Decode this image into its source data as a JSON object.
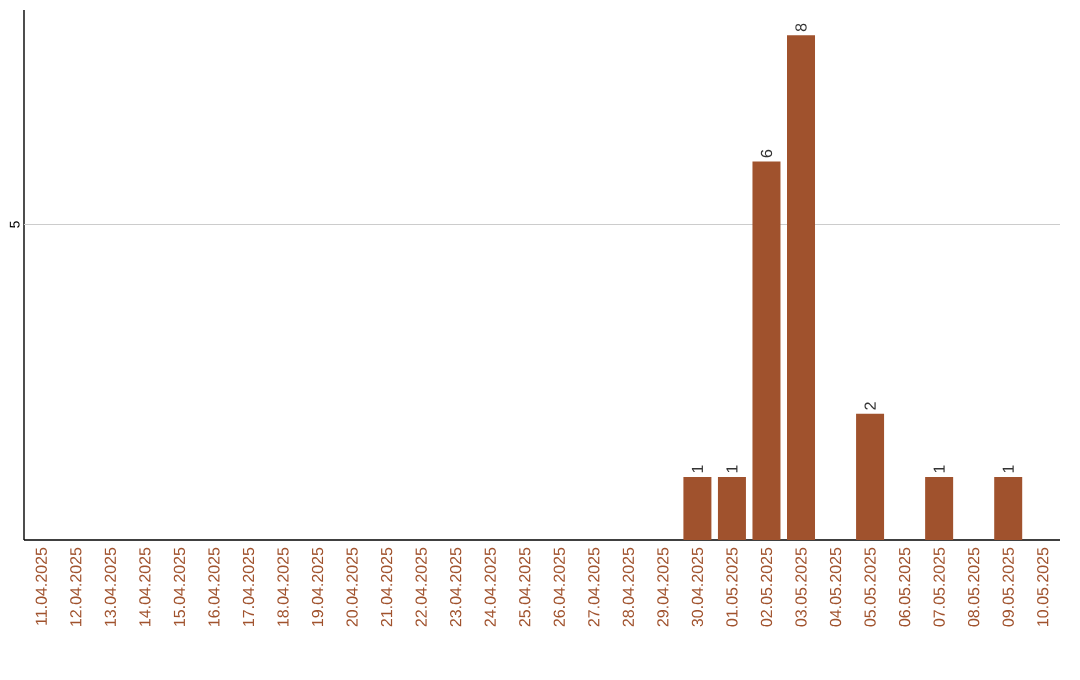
{
  "chart_data": {
    "type": "bar",
    "categories": [
      "11.04.2025",
      "12.04.2025",
      "13.04.2025",
      "14.04.2025",
      "15.04.2025",
      "16.04.2025",
      "17.04.2025",
      "18.04.2025",
      "19.04.2025",
      "20.04.2025",
      "21.04.2025",
      "22.04.2025",
      "23.04.2025",
      "24.04.2025",
      "25.04.2025",
      "26.04.2025",
      "27.04.2025",
      "28.04.2025",
      "29.04.2025",
      "30.04.2025",
      "01.05.2025",
      "02.05.2025",
      "03.05.2025",
      "04.05.2025",
      "05.05.2025",
      "06.05.2025",
      "07.05.2025",
      "08.05.2025",
      "09.05.2025",
      "10.05.2025"
    ],
    "values": [
      null,
      null,
      null,
      null,
      null,
      null,
      null,
      null,
      null,
      null,
      null,
      null,
      null,
      null,
      null,
      null,
      null,
      null,
      null,
      1,
      1,
      6,
      8,
      null,
      2,
      null,
      1,
      null,
      1,
      null
    ],
    "data_labels": true,
    "color": "#a0522d",
    "ylim": [
      0,
      8.4
    ],
    "ref_lines": [
      {
        "axis": "y",
        "value": 5,
        "label": "5",
        "color": "#cccccc"
      }
    ]
  }
}
